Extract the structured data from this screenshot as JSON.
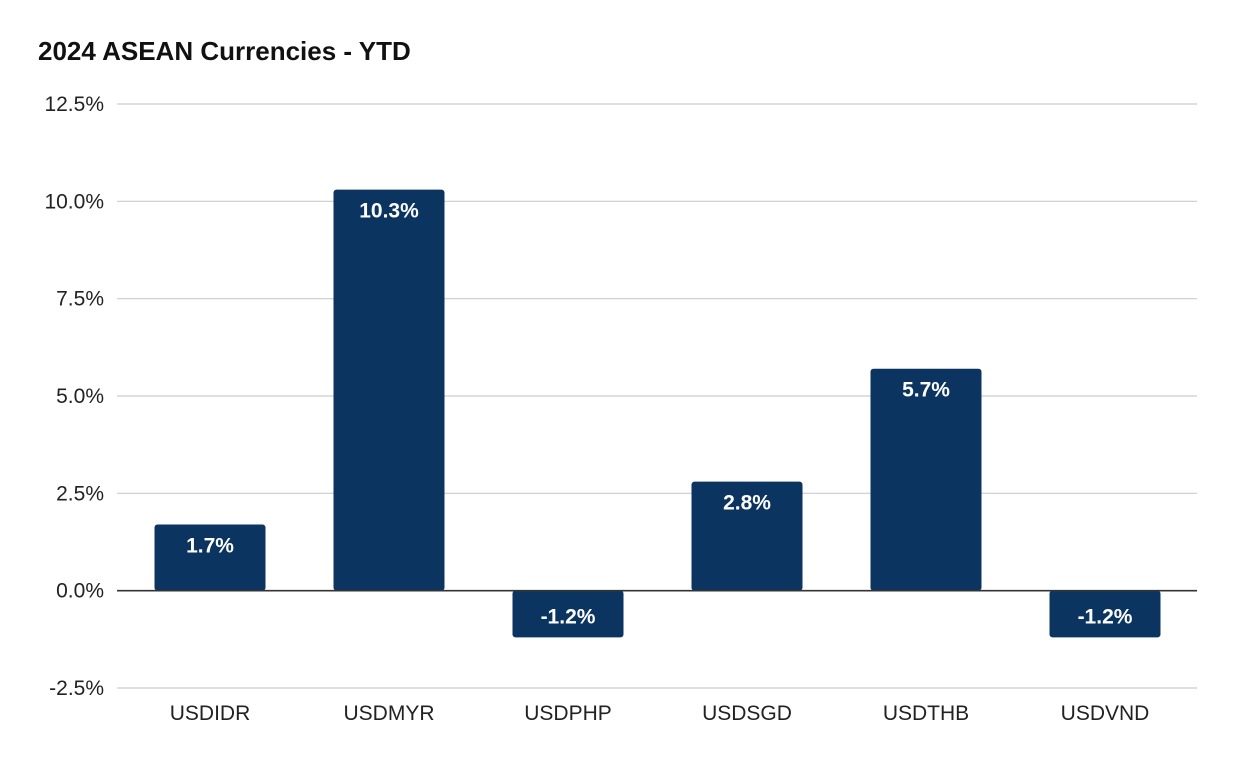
{
  "chart_data": {
    "type": "bar",
    "title": "2024 ASEAN Currencies - YTD",
    "xlabel": "",
    "ylabel": "",
    "categories": [
      "USDIDR",
      "USDMYR",
      "USDPHP",
      "USDSGD",
      "USDTHB",
      "USDVND"
    ],
    "values": [
      1.7,
      10.3,
      -1.2,
      2.8,
      5.7,
      -1.2
    ],
    "data_labels": [
      "1.7%",
      "10.3%",
      "-1.2%",
      "2.8%",
      "5.7%",
      "-1.2%"
    ],
    "ylim": [
      -2.5,
      12.5
    ],
    "yticks": [
      12.5,
      10.0,
      7.5,
      5.0,
      2.5,
      0.0,
      -2.5
    ],
    "ytick_labels": [
      "12.5%",
      "10.0%",
      "7.5%",
      "5.0%",
      "2.5%",
      "0.0%",
      "-2.5%"
    ],
    "grid": true,
    "legend": "none",
    "colors": {
      "bar": "#0b3460",
      "grid": "#cccccc",
      "zero_line": "#333333"
    }
  }
}
